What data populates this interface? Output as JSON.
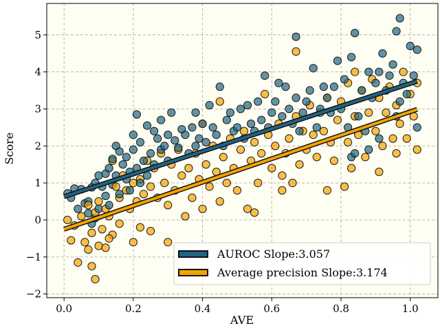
{
  "chart_data": {
    "type": "scatter",
    "title": "",
    "xlabel": "AVE",
    "ylabel": "Score",
    "xlim": [
      -0.05,
      1.08
    ],
    "ylim": [
      -2.1,
      5.85
    ],
    "xticks": [
      0.0,
      0.2,
      0.4,
      0.6,
      0.8,
      1.0
    ],
    "xtick_labels": [
      "0.0",
      "0.2",
      "0.4",
      "0.6",
      "0.8",
      "1.0"
    ],
    "yticks": [
      -2,
      -1,
      0,
      1,
      2,
      3,
      4,
      5
    ],
    "ytick_labels": [
      "−2",
      "−1",
      "0",
      "1",
      "2",
      "3",
      "4",
      "5"
    ],
    "grid": true,
    "background": "#fffef2",
    "legend_position": "lower-right",
    "series": [
      {
        "name": "AUROC Slope:3.057",
        "color": "#1f6583",
        "fit": {
          "slope": 3.057,
          "intercept": 0.63,
          "x_range": [
            0.0,
            1.02
          ]
        },
        "points": [
          [
            0.01,
            0.72
          ],
          [
            0.02,
            0.6
          ],
          [
            0.03,
            0.85
          ],
          [
            0.04,
            0.3
          ],
          [
            0.05,
            0.83
          ],
          [
            0.06,
            0.45
          ],
          [
            0.07,
            0.18
          ],
          [
            0.07,
            0.5
          ],
          [
            0.08,
            0.88
          ],
          [
            0.08,
            -0.1
          ],
          [
            0.09,
            0.05
          ],
          [
            0.09,
            1.0
          ],
          [
            0.1,
            0.3
          ],
          [
            0.1,
            1.2
          ],
          [
            0.11,
            0.9
          ],
          [
            0.12,
            1.25
          ],
          [
            0.12,
            0.65
          ],
          [
            0.13,
            1.4
          ],
          [
            0.13,
            0.4
          ],
          [
            0.14,
            1.65
          ],
          [
            0.14,
            0.95
          ],
          [
            0.15,
            2.0
          ],
          [
            0.15,
            1.2
          ],
          [
            0.16,
            1.85
          ],
          [
            0.16,
            0.7
          ],
          [
            0.17,
            1.5
          ],
          [
            0.18,
            1.7
          ],
          [
            0.18,
            1.1
          ],
          [
            0.19,
            1.3
          ],
          [
            0.19,
            0.8
          ],
          [
            0.2,
            2.3
          ],
          [
            0.2,
            1.9
          ],
          [
            0.21,
            2.85
          ],
          [
            0.21,
            1.4
          ],
          [
            0.22,
            1.0
          ],
          [
            0.22,
            2.1
          ],
          [
            0.23,
            1.6
          ],
          [
            0.24,
            2.55
          ],
          [
            0.24,
            1.2
          ],
          [
            0.25,
            1.8
          ],
          [
            0.26,
            2.4
          ],
          [
            0.26,
            1.5
          ],
          [
            0.27,
            2.2
          ],
          [
            0.28,
            2.7
          ],
          [
            0.28,
            1.9
          ],
          [
            0.29,
            2.0
          ],
          [
            0.3,
            2.3
          ],
          [
            0.3,
            1.6
          ],
          [
            0.31,
            2.9
          ],
          [
            0.32,
            2.15
          ],
          [
            0.33,
            1.95
          ],
          [
            0.34,
            2.45
          ],
          [
            0.35,
            2.3
          ],
          [
            0.36,
            1.8
          ],
          [
            0.37,
            2.5
          ],
          [
            0.38,
            2.0
          ],
          [
            0.38,
            2.9
          ],
          [
            0.39,
            2.2
          ],
          [
            0.4,
            2.6
          ],
          [
            0.41,
            2.1
          ],
          [
            0.42,
            3.1
          ],
          [
            0.43,
            2.5
          ],
          [
            0.44,
            2.3
          ],
          [
            0.45,
            3.6
          ],
          [
            0.46,
            2.0
          ],
          [
            0.47,
            2.7
          ],
          [
            0.48,
            2.9
          ],
          [
            0.49,
            2.4
          ],
          [
            0.5,
            2.5
          ],
          [
            0.51,
            3.0
          ],
          [
            0.52,
            2.2
          ],
          [
            0.53,
            3.1
          ],
          [
            0.54,
            2.6
          ],
          [
            0.55,
            2.4
          ],
          [
            0.56,
            3.2
          ],
          [
            0.57,
            2.7
          ],
          [
            0.58,
            3.9
          ],
          [
            0.59,
            2.5
          ],
          [
            0.6,
            2.9
          ],
          [
            0.61,
            3.2
          ],
          [
            0.62,
            3.7
          ],
          [
            0.63,
            2.8
          ],
          [
            0.64,
            3.6
          ],
          [
            0.65,
            3.0
          ],
          [
            0.66,
            2.6
          ],
          [
            0.67,
            4.95
          ],
          [
            0.67,
            3.3
          ],
          [
            0.68,
            2.4
          ],
          [
            0.69,
            2.9
          ],
          [
            0.7,
            3.2
          ],
          [
            0.71,
            3.5
          ],
          [
            0.72,
            4.1
          ],
          [
            0.73,
            2.5
          ],
          [
            0.74,
            3.0
          ],
          [
            0.75,
            3.6
          ],
          [
            0.76,
            3.3
          ],
          [
            0.77,
            2.9
          ],
          [
            0.78,
            3.6
          ],
          [
            0.79,
            4.3
          ],
          [
            0.8,
            3.0
          ],
          [
            0.81,
            3.8
          ],
          [
            0.82,
            2.5
          ],
          [
            0.83,
            4.4
          ],
          [
            0.83,
            1.7
          ],
          [
            0.84,
            5.05
          ],
          [
            0.84,
            1.8
          ],
          [
            0.85,
            2.8
          ],
          [
            0.86,
            3.5
          ],
          [
            0.87,
            2.4
          ],
          [
            0.88,
            4.0
          ],
          [
            0.88,
            1.9
          ],
          [
            0.89,
            3.3
          ],
          [
            0.9,
            3.7
          ],
          [
            0.91,
            4.0
          ],
          [
            0.91,
            2.2
          ],
          [
            0.92,
            4.5
          ],
          [
            0.93,
            3.5
          ],
          [
            0.94,
            3.9
          ],
          [
            0.95,
            4.2
          ],
          [
            0.96,
            5.1
          ],
          [
            0.96,
            2.8
          ],
          [
            0.97,
            5.45
          ],
          [
            0.97,
            3.2
          ],
          [
            0.98,
            3.7
          ],
          [
            0.99,
            3.4
          ],
          [
            1.0,
            4.7
          ],
          [
            1.01,
            3.9
          ],
          [
            1.02,
            4.6
          ],
          [
            1.02,
            2.5
          ]
        ]
      },
      {
        "name": "Average precision Slope:3.174",
        "color": "#f5a300",
        "fit": {
          "slope": 3.174,
          "intercept": -0.25,
          "x_range": [
            0.0,
            1.02
          ]
        },
        "points": [
          [
            0.01,
            0.0
          ],
          [
            0.02,
            -0.55
          ],
          [
            0.03,
            -0.15
          ],
          [
            0.04,
            -1.15
          ],
          [
            0.05,
            0.1
          ],
          [
            0.06,
            -0.6
          ],
          [
            0.07,
            -0.8
          ],
          [
            0.07,
            0.4
          ],
          [
            0.08,
            -1.25
          ],
          [
            0.08,
            -0.35
          ],
          [
            0.09,
            -1.6
          ],
          [
            0.09,
            0.2
          ],
          [
            0.1,
            -0.7
          ],
          [
            0.1,
            0.5
          ],
          [
            0.11,
            -0.25
          ],
          [
            0.12,
            -0.75
          ],
          [
            0.12,
            0.3
          ],
          [
            0.13,
            0.1
          ],
          [
            0.14,
            1.6
          ],
          [
            0.14,
            -0.4
          ],
          [
            0.15,
            0.9
          ],
          [
            0.16,
            0.6
          ],
          [
            0.16,
            -0.1
          ],
          [
            0.17,
            1.2
          ],
          [
            0.18,
            0.8
          ],
          [
            0.19,
            0.3
          ],
          [
            0.2,
            1.0
          ],
          [
            0.2,
            -0.6
          ],
          [
            0.21,
            0.5
          ],
          [
            0.22,
            1.1
          ],
          [
            0.22,
            -0.2
          ],
          [
            0.23,
            0.7
          ],
          [
            0.24,
            1.6
          ],
          [
            0.25,
            0.9
          ],
          [
            0.25,
            -0.3
          ],
          [
            0.26,
            1.4
          ],
          [
            0.27,
            0.6
          ],
          [
            0.28,
            1.8
          ],
          [
            0.29,
            1.0
          ],
          [
            0.3,
            -0.6
          ],
          [
            0.3,
            0.4
          ],
          [
            0.31,
            1.5
          ],
          [
            0.32,
            0.8
          ],
          [
            0.33,
            1.9
          ],
          [
            0.34,
            1.2
          ],
          [
            0.35,
            0.1
          ],
          [
            0.36,
            1.4
          ],
          [
            0.37,
            0.6
          ],
          [
            0.38,
            1.8
          ],
          [
            0.39,
            1.1
          ],
          [
            0.4,
            0.3
          ],
          [
            0.4,
            2.6
          ],
          [
            0.41,
            1.5
          ],
          [
            0.42,
            0.9
          ],
          [
            0.43,
            2.0
          ],
          [
            0.44,
            1.3
          ],
          [
            0.45,
            3.2
          ],
          [
            0.45,
            0.5
          ],
          [
            0.46,
            1.7
          ],
          [
            0.47,
            1.0
          ],
          [
            0.48,
            2.2
          ],
          [
            0.49,
            1.4
          ],
          [
            0.5,
            0.8
          ],
          [
            0.51,
            1.9
          ],
          [
            0.52,
            2.4
          ],
          [
            0.53,
            0.3
          ],
          [
            0.54,
            1.6
          ],
          [
            0.55,
            2.1
          ],
          [
            0.56,
            1.0
          ],
          [
            0.57,
            1.8
          ],
          [
            0.58,
            3.4
          ],
          [
            0.59,
            2.3
          ],
          [
            0.6,
            1.4
          ],
          [
            0.61,
            2.0
          ],
          [
            0.62,
            2.6
          ],
          [
            0.63,
            0.8
          ],
          [
            0.64,
            1.8
          ],
          [
            0.65,
            2.2
          ],
          [
            0.66,
            1.0
          ],
          [
            0.67,
            4.55
          ],
          [
            0.67,
            2.8
          ],
          [
            0.68,
            1.5
          ],
          [
            0.69,
            2.4
          ],
          [
            0.7,
            1.9
          ],
          [
            0.71,
            3.1
          ],
          [
            0.72,
            2.3
          ],
          [
            0.73,
            1.7
          ],
          [
            0.74,
            2.9
          ],
          [
            0.75,
            2.4
          ],
          [
            0.76,
            0.8
          ],
          [
            0.76,
            3.3
          ],
          [
            0.77,
            2.1
          ],
          [
            0.78,
            1.6
          ],
          [
            0.79,
            2.7
          ],
          [
            0.8,
            3.2
          ],
          [
            0.81,
            0.9
          ],
          [
            0.82,
            2.1
          ],
          [
            0.82,
            3.7
          ],
          [
            0.83,
            1.4
          ],
          [
            0.84,
            2.8
          ],
          [
            0.84,
            4.0
          ],
          [
            0.85,
            2.3
          ],
          [
            0.86,
            3.5
          ],
          [
            0.87,
            1.7
          ],
          [
            0.88,
            2.9
          ],
          [
            0.89,
            3.8
          ],
          [
            0.9,
            2.4
          ],
          [
            0.91,
            1.3
          ],
          [
            0.91,
            3.3
          ],
          [
            0.92,
            2.0
          ],
          [
            0.93,
            2.9
          ],
          [
            0.94,
            3.6
          ],
          [
            0.95,
            2.2
          ],
          [
            0.96,
            3.1
          ],
          [
            0.96,
            1.8
          ],
          [
            0.97,
            2.6
          ],
          [
            0.98,
            4.0
          ],
          [
            0.99,
            2.2
          ],
          [
            1.0,
            3.4
          ],
          [
            1.01,
            2.8
          ],
          [
            1.02,
            1.9
          ],
          [
            1.02,
            3.7
          ],
          [
            0.13,
            -0.5
          ],
          [
            0.55,
            0.2
          ],
          [
            0.63,
            1.2
          ]
        ]
      }
    ]
  }
}
